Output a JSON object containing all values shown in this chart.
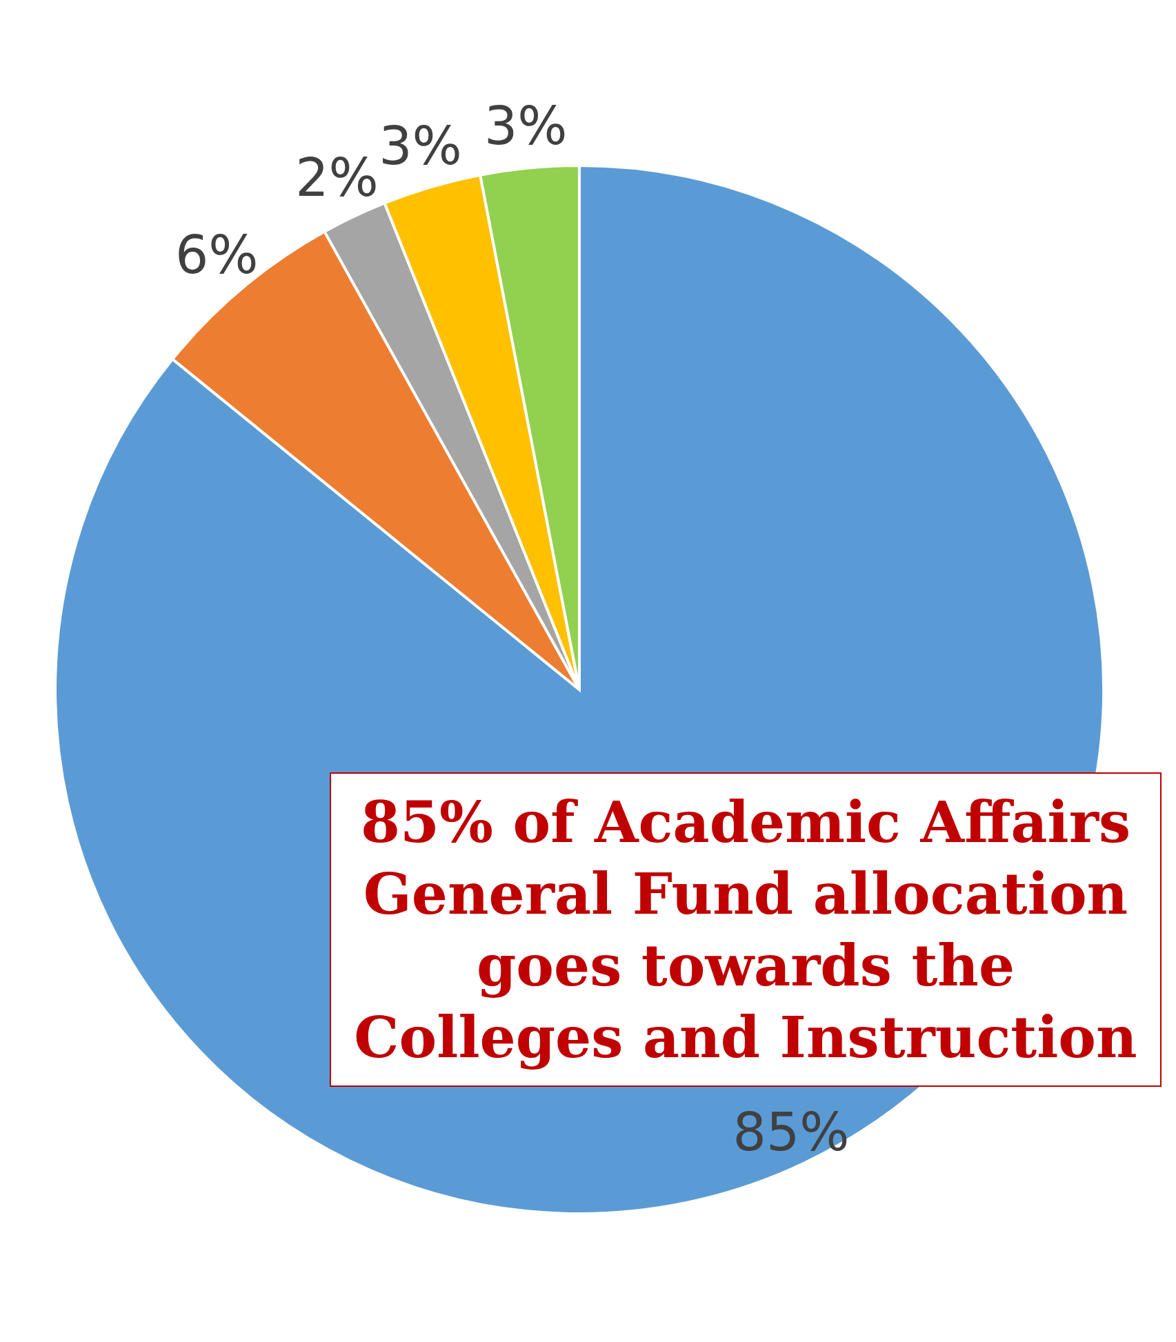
{
  "chart_data": {
    "type": "pie",
    "categories": [
      null,
      null,
      null,
      null,
      null
    ],
    "values": [
      85,
      6,
      2,
      3,
      3
    ],
    "colors": [
      "#5b9bd5",
      "#ed7d31",
      "#a5a5a5",
      "#ffc000",
      "#92d050"
    ],
    "value_labels": [
      "85%",
      "6%",
      "2%",
      "3%",
      "3%"
    ],
    "annotations": [
      "85% of Academic Affairs General Fund allocation goes towards the Colleges and Instruction"
    ]
  }
}
